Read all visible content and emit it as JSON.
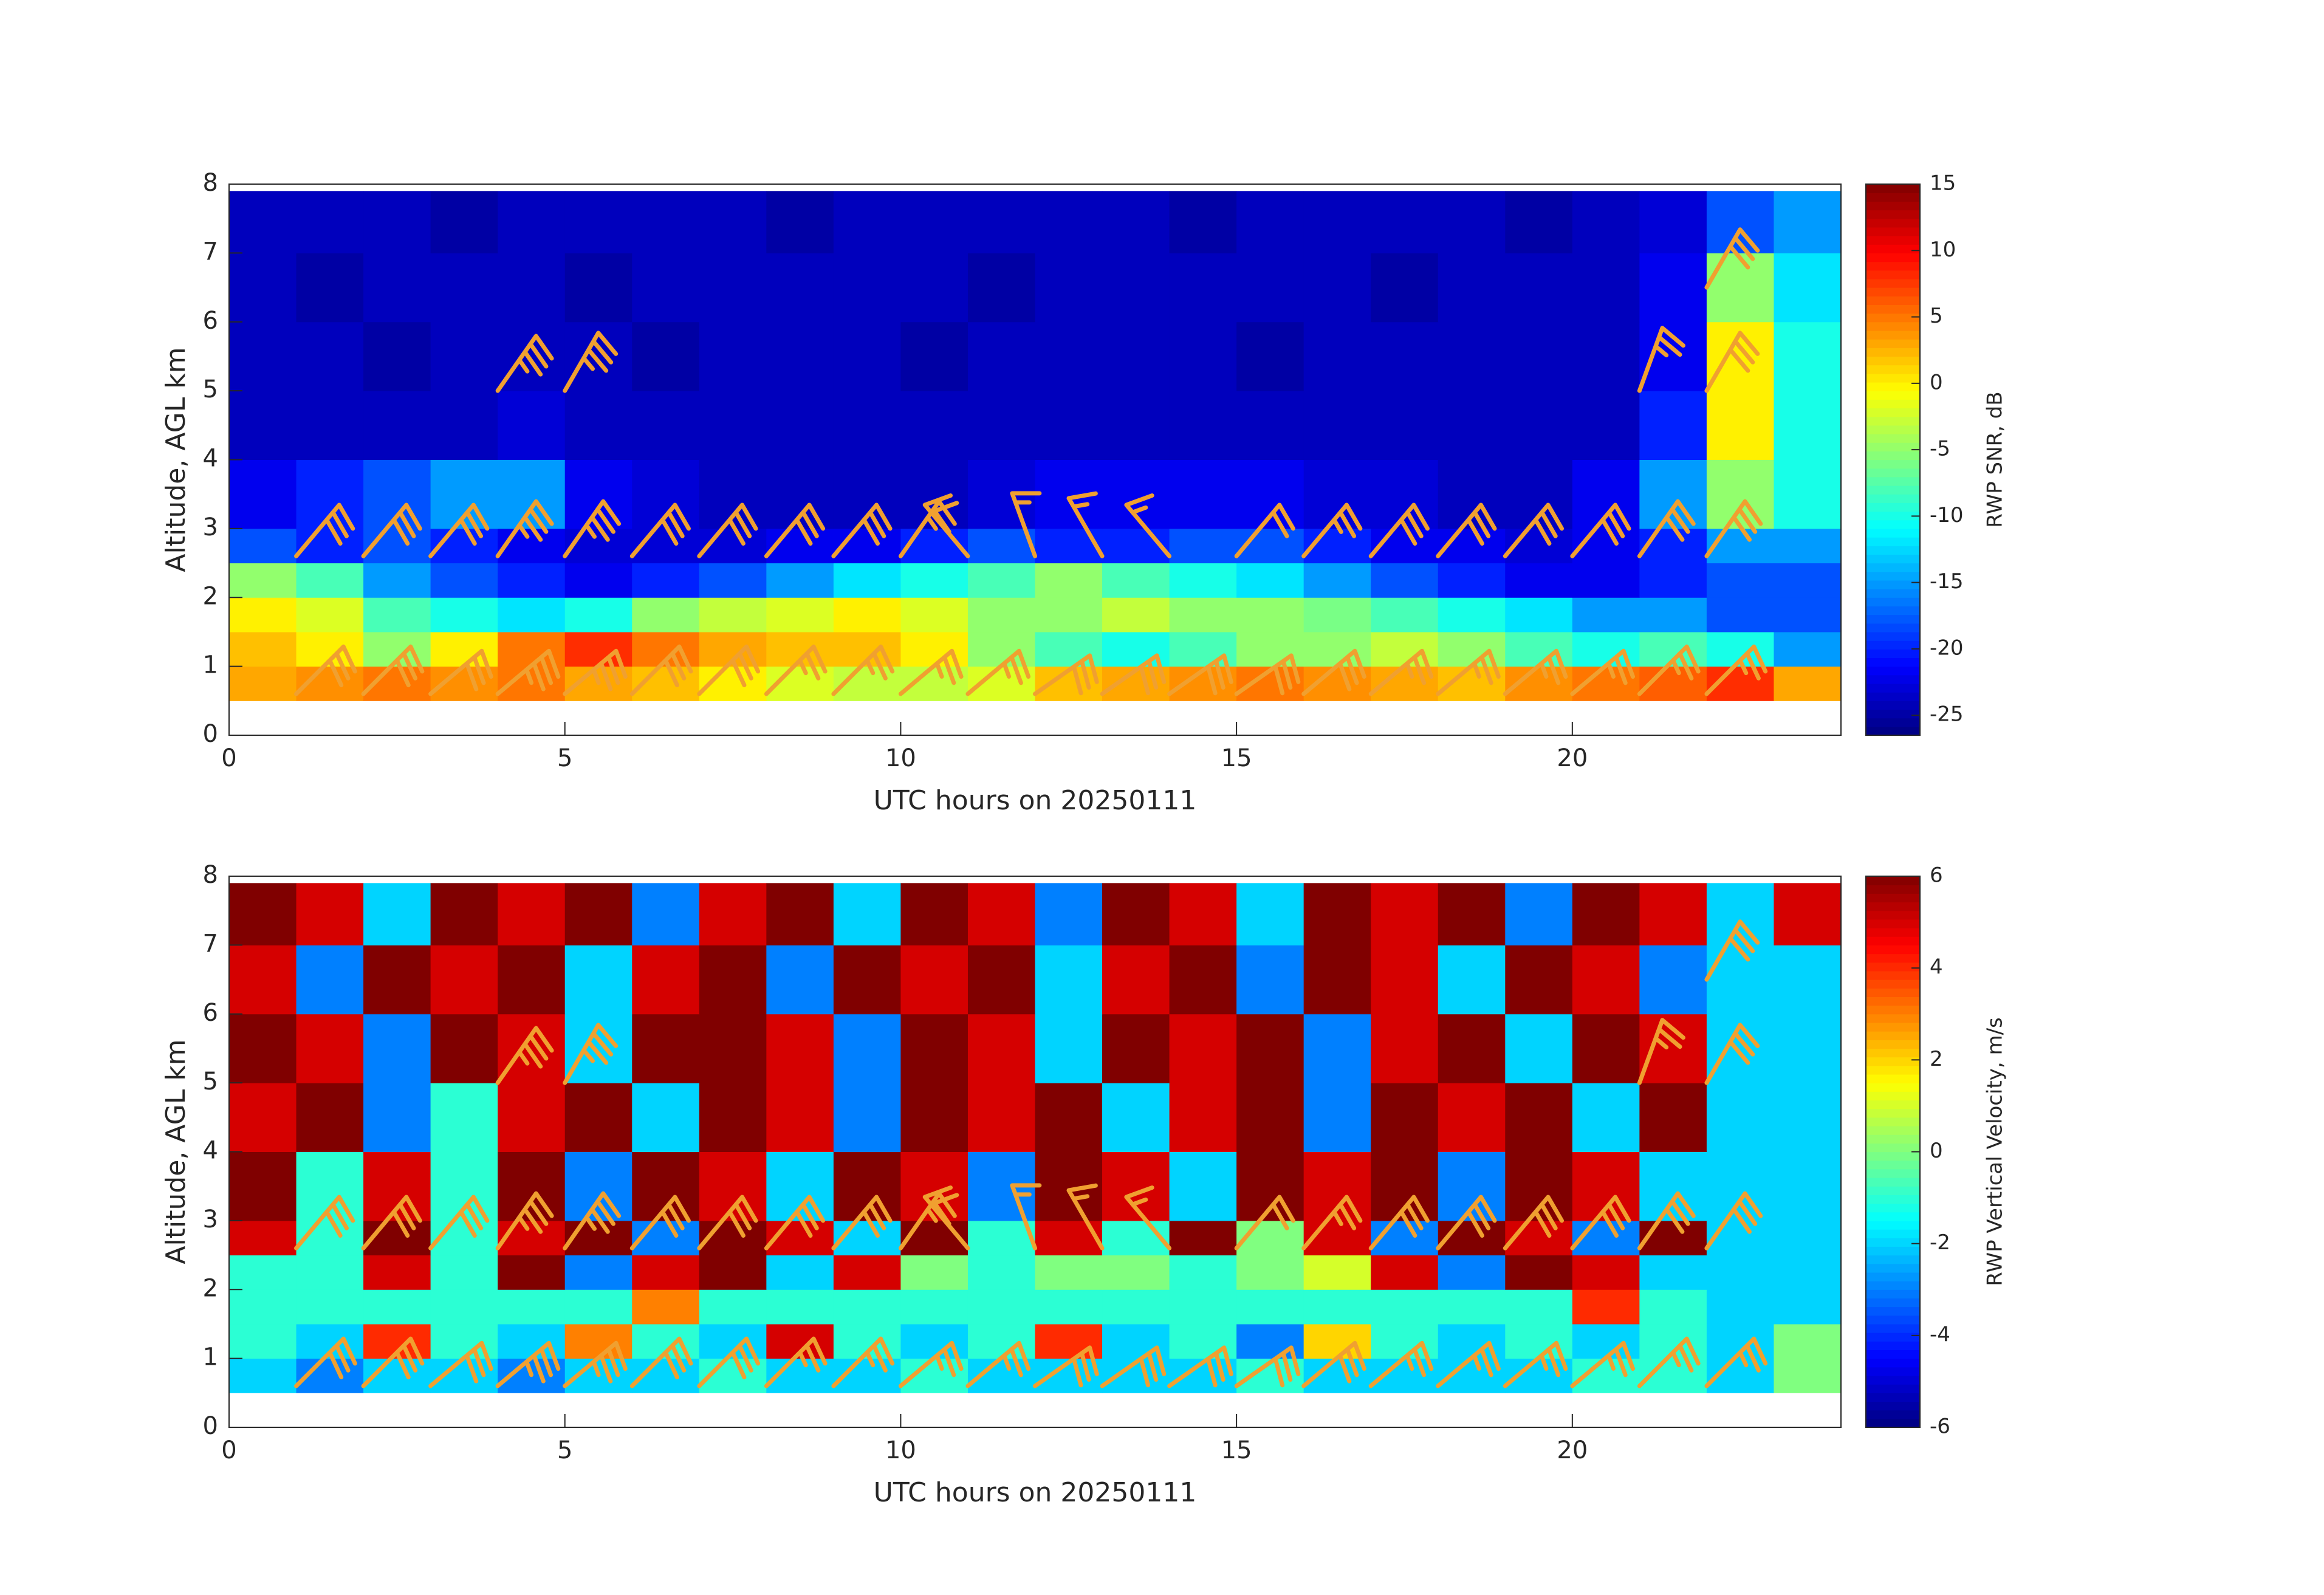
{
  "chart_data": [
    {
      "type": "heatmap",
      "colormap": "jet",
      "xlabel": "UTC hours on 20250111",
      "ylabel": "Altitude, AGL km",
      "colorbar_label": "RWP SNR, dB",
      "xlim": [
        0,
        24
      ],
      "ylim": [
        0,
        8
      ],
      "xticks": [
        0,
        5,
        10,
        15,
        20
      ],
      "yticks": [
        0,
        1,
        2,
        3,
        4,
        5,
        6,
        7,
        8
      ],
      "clim": [
        -26.5,
        15
      ],
      "cticks": [
        -25,
        -20,
        -15,
        -10,
        -5,
        0,
        5,
        10,
        15
      ],
      "x_edges": [
        0,
        1,
        2,
        3,
        4,
        5,
        6,
        7,
        8,
        9,
        10,
        11,
        12,
        13,
        14,
        15,
        16,
        17,
        18,
        19,
        20,
        21,
        22,
        23,
        24
      ],
      "y_edges": [
        0.5,
        1,
        1.5,
        2,
        2.5,
        3,
        4,
        5,
        6,
        7,
        7.9
      ],
      "z": [
        [
          3,
          4,
          5,
          4,
          5,
          3,
          2,
          0,
          -2,
          -3,
          -3,
          -2,
          2,
          3,
          4,
          5,
          4,
          3,
          2,
          4,
          5,
          6,
          8,
          3
        ],
        [
          2,
          0,
          -5,
          0,
          5,
          8,
          5,
          3,
          2,
          2,
          0,
          -5,
          -8,
          -10,
          -8,
          -5,
          -5,
          -3,
          -5,
          -8,
          -10,
          -8,
          -10,
          -15
        ],
        [
          0,
          -2,
          -8,
          -10,
          -12,
          -10,
          -5,
          -3,
          -2,
          0,
          -2,
          -5,
          -5,
          -3,
          -5,
          -5,
          -6,
          -8,
          -10,
          -12,
          -15,
          -15,
          -18,
          -18
        ],
        [
          -5,
          -8,
          -15,
          -18,
          -20,
          -22,
          -20,
          -18,
          -15,
          -12,
          -10,
          -8,
          -5,
          -8,
          -10,
          -12,
          -15,
          -18,
          -20,
          -22,
          -22,
          -20,
          -18,
          -18
        ],
        [
          -18,
          -20,
          -18,
          -20,
          -22,
          -23,
          -23,
          -23,
          -22,
          -22,
          -20,
          -18,
          -20,
          -20,
          -18,
          -18,
          -20,
          -22,
          -22,
          -23,
          -22,
          -20,
          -15,
          -15
        ],
        [
          -22,
          -20,
          -18,
          -15,
          -15,
          -22,
          -23,
          -24,
          -24,
          -24,
          -24,
          -23,
          -22,
          -22,
          -22,
          -22,
          -23,
          -23,
          -24,
          -24,
          -22,
          -15,
          -5,
          -10
        ],
        [
          -24,
          -24,
          -24,
          -24,
          -23,
          -24,
          -24,
          -24,
          -24,
          -24,
          -24,
          -24,
          -24,
          -24,
          -24,
          -24,
          -24,
          -24,
          -24,
          -24,
          -24,
          -20,
          0,
          -10
        ],
        [
          -24,
          -24,
          -25,
          -24,
          -24,
          -24,
          -25,
          -24,
          -24,
          -24,
          -25,
          -24,
          -24,
          -24,
          -24,
          -25,
          -24,
          -24,
          -24,
          -24,
          -24,
          -22,
          0,
          -10
        ],
        [
          -24,
          -25,
          -24,
          -24,
          -24,
          -25,
          -24,
          -24,
          -24,
          -24,
          -24,
          -25,
          -24,
          -24,
          -24,
          -24,
          -24,
          -25,
          -24,
          -24,
          -24,
          -22,
          -5,
          -12
        ],
        [
          -24,
          -24,
          -24,
          -25,
          -24,
          -24,
          -24,
          -24,
          -25,
          -24,
          -24,
          -24,
          -24,
          -24,
          -25,
          -24,
          -24,
          -24,
          -24,
          -25,
          -24,
          -23,
          -18,
          -15
        ]
      ],
      "barb_color": "#f0a030",
      "wind_barbs": {
        "x": [
          1,
          2,
          3,
          4,
          5,
          6,
          7,
          8,
          9,
          10,
          11,
          12,
          13,
          14,
          15,
          16,
          17,
          18,
          19,
          20,
          21,
          22,
          1,
          2,
          3,
          4,
          5,
          6,
          7,
          8,
          9,
          10,
          11,
          12,
          13,
          14,
          15,
          16,
          17,
          18,
          19,
          20,
          21,
          22,
          4,
          5,
          21,
          22,
          22
        ],
        "y": [
          0.6,
          0.6,
          0.6,
          0.6,
          0.6,
          0.6,
          0.6,
          0.6,
          0.6,
          0.6,
          0.6,
          0.6,
          0.6,
          0.6,
          0.6,
          0.6,
          0.6,
          0.6,
          0.6,
          0.6,
          0.6,
          0.6,
          2.6,
          2.6,
          2.6,
          2.6,
          2.6,
          2.6,
          2.6,
          2.6,
          2.6,
          2.6,
          2.6,
          2.6,
          2.6,
          2.6,
          2.6,
          2.6,
          2.6,
          2.6,
          2.6,
          2.6,
          2.6,
          2.6,
          5,
          5,
          5,
          5,
          6.5
        ],
        "speed": [
          30,
          30,
          30,
          35,
          35,
          30,
          30,
          25,
          25,
          25,
          25,
          30,
          30,
          30,
          30,
          30,
          25,
          25,
          25,
          25,
          25,
          25,
          30,
          30,
          30,
          35,
          35,
          30,
          30,
          30,
          30,
          25,
          20,
          15,
          15,
          15,
          20,
          25,
          30,
          30,
          30,
          30,
          30,
          30,
          35,
          35,
          25,
          30,
          30
        ],
        "direction": [
          45,
          45,
          50,
          50,
          50,
          45,
          45,
          45,
          45,
          50,
          50,
          55,
          55,
          55,
          55,
          50,
          50,
          50,
          50,
          50,
          45,
          45,
          40,
          40,
          40,
          35,
          35,
          40,
          40,
          40,
          40,
          35,
          320,
          340,
          330,
          320,
          40,
          40,
          40,
          40,
          40,
          40,
          35,
          35,
          35,
          30,
          20,
          30,
          30
        ]
      }
    },
    {
      "type": "heatmap",
      "colormap": "jet",
      "xlabel": "UTC hours on 20250111",
      "ylabel": "Altitude, AGL km",
      "colorbar_label": "RWP Vertical Velocity, m/s",
      "xlim": [
        0,
        24
      ],
      "ylim": [
        0,
        8
      ],
      "xticks": [
        0,
        5,
        10,
        15,
        20
      ],
      "yticks": [
        0,
        1,
        2,
        3,
        4,
        5,
        6,
        7,
        8
      ],
      "clim": [
        -6,
        6
      ],
      "cticks": [
        -6,
        -4,
        -2,
        0,
        2,
        4,
        6
      ],
      "x_edges": [
        0,
        1,
        2,
        3,
        4,
        5,
        6,
        7,
        8,
        9,
        10,
        11,
        12,
        13,
        14,
        15,
        16,
        17,
        18,
        19,
        20,
        21,
        22,
        23,
        24
      ],
      "y_edges": [
        0.5,
        1,
        1.5,
        2,
        2.5,
        3,
        4,
        5,
        6,
        7,
        7.9
      ],
      "z": [
        [
          -2,
          -3,
          -2,
          -2,
          -3,
          -2,
          -2,
          -1,
          -2,
          -2,
          -1,
          -2,
          -2,
          -2,
          -2,
          -1,
          -2,
          -2,
          -2,
          -2,
          -1,
          -1,
          -2,
          0
        ],
        [
          -1,
          -2,
          4,
          -1,
          -2,
          3,
          -1,
          -2,
          5,
          -1,
          -2,
          -1,
          4,
          -2,
          -1,
          -3,
          2,
          -1,
          -2,
          -1,
          -2,
          -1,
          -2,
          0
        ],
        [
          -1,
          -1,
          -1,
          -1,
          -1,
          -1,
          3,
          -1,
          -1,
          -1,
          -1,
          -1,
          -1,
          -1,
          -1,
          -1,
          -1,
          -1,
          -1,
          -1,
          4,
          -1,
          -2,
          -2
        ],
        [
          -1,
          -1,
          5,
          -1,
          6,
          -3,
          5,
          6,
          -2,
          5,
          0,
          -1,
          0,
          0,
          -1,
          0,
          1,
          5,
          -3,
          6,
          5,
          -2,
          -2,
          -2
        ],
        [
          5,
          -1,
          6,
          -1,
          5,
          6,
          -3,
          6,
          5,
          -2,
          6,
          -1,
          5,
          -1,
          6,
          0,
          5,
          -3,
          6,
          5,
          -3,
          6,
          -2,
          -2
        ],
        [
          6,
          -1,
          5,
          -1,
          6,
          -3,
          6,
          5,
          -2,
          6,
          5,
          -3,
          6,
          5,
          -2,
          6,
          5,
          6,
          -3,
          6,
          5,
          -2,
          -2,
          -2
        ],
        [
          5,
          6,
          -3,
          -1,
          5,
          6,
          -2,
          6,
          5,
          -3,
          6,
          5,
          6,
          -2,
          5,
          6,
          -3,
          6,
          5,
          6,
          -2,
          6,
          -2,
          -2
        ],
        [
          6,
          5,
          -3,
          6,
          5,
          -2,
          6,
          6,
          5,
          -3,
          6,
          5,
          -2,
          6,
          5,
          6,
          -3,
          5,
          6,
          -2,
          6,
          5,
          -2,
          -2
        ],
        [
          5,
          -3,
          6,
          5,
          6,
          -2,
          5,
          6,
          -3,
          6,
          5,
          6,
          -2,
          5,
          6,
          -3,
          6,
          5,
          -2,
          6,
          5,
          -3,
          -2,
          -2
        ],
        [
          6,
          5,
          -2,
          6,
          5,
          6,
          -3,
          5,
          6,
          -2,
          6,
          5,
          -3,
          6,
          5,
          -2,
          6,
          5,
          6,
          -3,
          6,
          5,
          -2,
          5
        ]
      ],
      "barb_color": "#f0a030",
      "wind_barbs": {
        "x": [
          1,
          2,
          3,
          4,
          5,
          6,
          7,
          8,
          9,
          10,
          11,
          12,
          13,
          14,
          15,
          16,
          17,
          18,
          19,
          20,
          21,
          22,
          1,
          2,
          3,
          4,
          5,
          6,
          7,
          8,
          9,
          10,
          11,
          12,
          13,
          14,
          15,
          16,
          17,
          18,
          19,
          20,
          21,
          22,
          4,
          5,
          21,
          22,
          22
        ],
        "y": [
          0.6,
          0.6,
          0.6,
          0.6,
          0.6,
          0.6,
          0.6,
          0.6,
          0.6,
          0.6,
          0.6,
          0.6,
          0.6,
          0.6,
          0.6,
          0.6,
          0.6,
          0.6,
          0.6,
          0.6,
          0.6,
          0.6,
          2.6,
          2.6,
          2.6,
          2.6,
          2.6,
          2.6,
          2.6,
          2.6,
          2.6,
          2.6,
          2.6,
          2.6,
          2.6,
          2.6,
          2.6,
          2.6,
          2.6,
          2.6,
          2.6,
          2.6,
          2.6,
          2.6,
          5,
          5,
          5,
          5,
          6.5
        ],
        "speed": [
          30,
          30,
          30,
          35,
          35,
          30,
          30,
          25,
          25,
          25,
          25,
          30,
          30,
          30,
          30,
          30,
          25,
          25,
          25,
          25,
          25,
          25,
          30,
          30,
          30,
          35,
          35,
          30,
          30,
          30,
          30,
          25,
          20,
          15,
          15,
          15,
          20,
          25,
          30,
          30,
          30,
          30,
          30,
          30,
          35,
          35,
          25,
          30,
          30
        ],
        "direction": [
          45,
          45,
          50,
          50,
          50,
          45,
          45,
          45,
          45,
          50,
          50,
          55,
          55,
          55,
          55,
          50,
          50,
          50,
          50,
          50,
          45,
          45,
          40,
          40,
          40,
          35,
          35,
          40,
          40,
          40,
          40,
          35,
          320,
          340,
          330,
          320,
          40,
          40,
          40,
          40,
          40,
          40,
          35,
          35,
          35,
          30,
          20,
          30,
          30
        ]
      }
    }
  ]
}
